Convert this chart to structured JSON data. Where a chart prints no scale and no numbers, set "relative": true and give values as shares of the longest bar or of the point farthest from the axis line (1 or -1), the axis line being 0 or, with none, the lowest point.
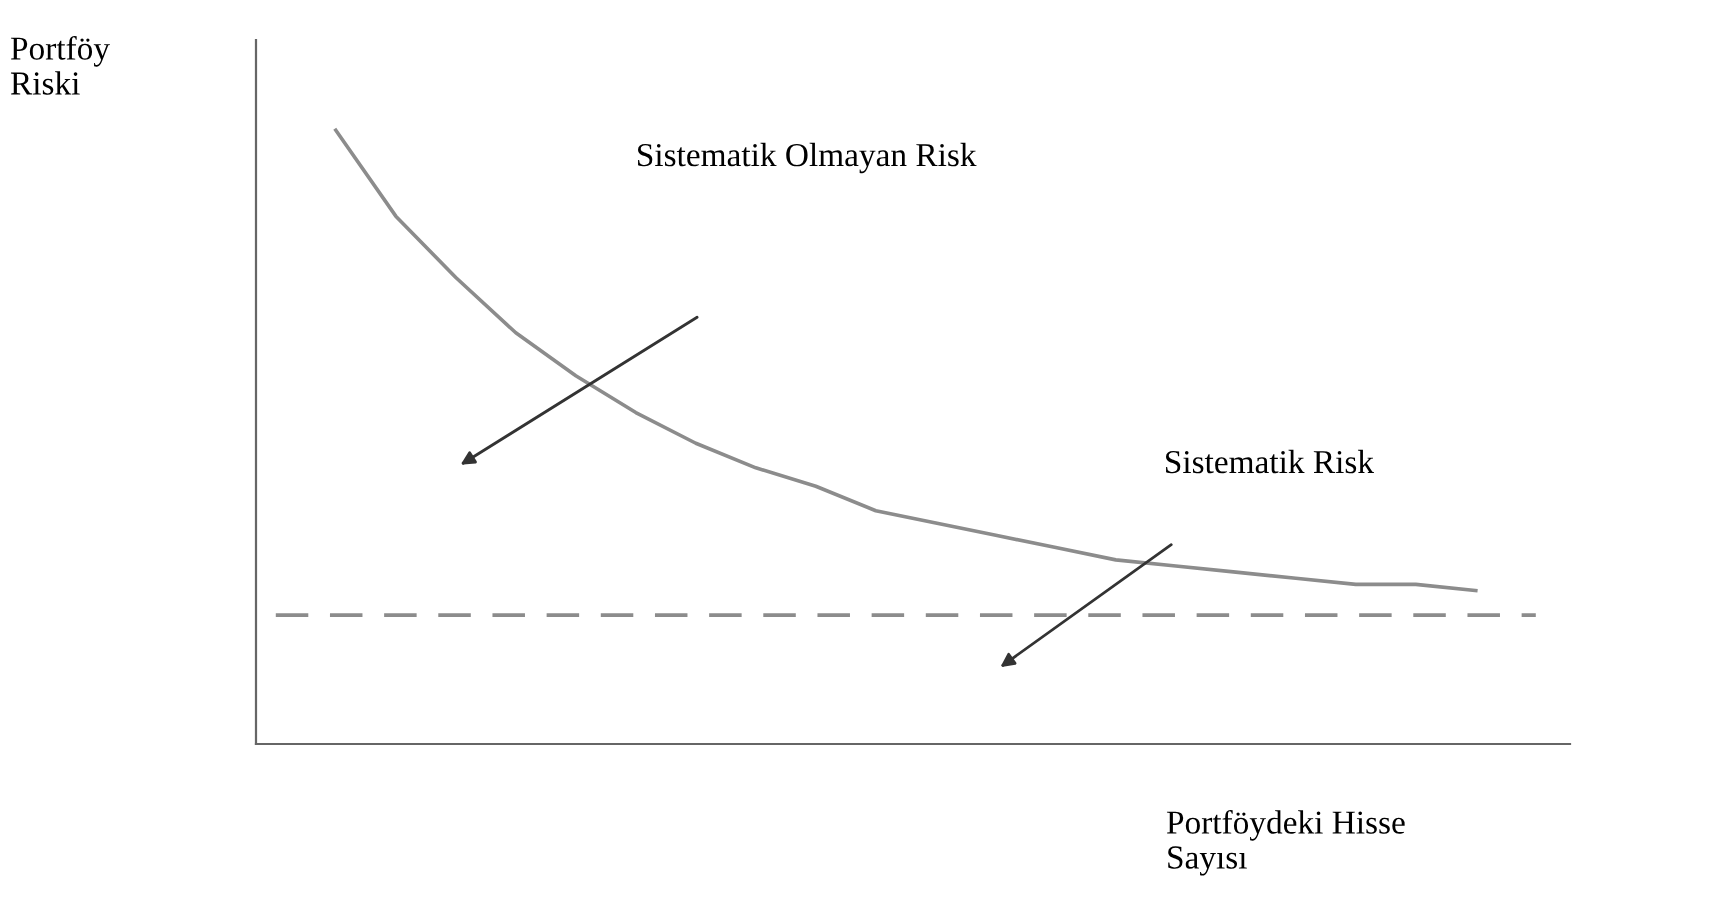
{
  "chart_data": {
    "type": "line",
    "relative": true,
    "xlabel": "Portföydeki Hisse\nSayısı",
    "ylabel": "Portföy\nRiski",
    "categories": [
      null,
      null,
      null,
      null,
      null,
      null,
      null,
      null,
      null,
      null,
      null,
      null,
      null,
      null,
      null,
      null,
      null,
      null,
      null,
      null,
      null,
      null
    ],
    "series": [
      {
        "color": "#8c8c8c",
        "line_style": "solid",
        "values": [
          null,
          1,
          0.86,
          0.76,
          0.67,
          0.6,
          0.54,
          0.49,
          0.45,
          0.42,
          0.38,
          0.36,
          0.34,
          0.32,
          0.3,
          0.29,
          0.28,
          0.27,
          0.26,
          0.26,
          0.25,
          null
        ]
      },
      {
        "color": "#8c8c8c",
        "line_style": "dashed",
        "values": [
          0.21,
          0.21,
          0.21,
          0.21,
          0.21,
          0.21,
          0.21,
          0.21,
          0.21,
          0.21,
          0.21,
          0.21,
          0.21,
          0.21,
          0.21,
          0.21,
          0.21,
          0.21,
          0.21,
          0.21,
          0.21,
          0.21
        ]
      }
    ],
    "annotations": [
      "Sistematik Olmayan Risk",
      "Sistematik Risk"
    ],
    "grid": false,
    "legend": false,
    "marker": "none"
  }
}
